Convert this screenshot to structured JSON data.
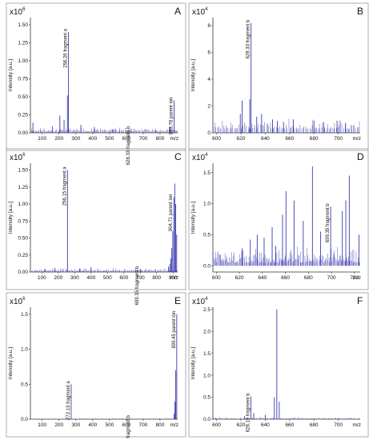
{
  "colors": {
    "spectrum": "#3a3ab0",
    "axis": "#333333",
    "frame": "#9a9a9a",
    "text": "#111111"
  },
  "chart_data": [
    {
      "type": "line",
      "letter": "A",
      "exponent_label": "x10",
      "exponent_power": "6",
      "ylabel": "Intensity [a.u.]",
      "xlabel": "m/z",
      "xlim": [
        30,
        905
      ],
      "ylim": [
        0,
        1.6
      ],
      "xticks": [
        100,
        200,
        300,
        400,
        500,
        600,
        700,
        800
      ],
      "yticks": [
        0.0,
        0.25,
        0.5,
        0.75,
        1.0,
        1.25,
        1.5
      ],
      "ytick_labels": [
        "0.00",
        "0.25",
        "0.50",
        "0.75",
        "1.00",
        "1.25",
        "1.50"
      ],
      "xtick_labels": [
        "100",
        "200",
        "300",
        "400",
        "500",
        "600",
        "700",
        "800"
      ],
      "peaks": [
        [
          256.26,
          1.4
        ],
        [
          628.33,
          0.05
        ],
        [
          883.78,
          0.45
        ],
        [
          250,
          0.52
        ],
        [
          205,
          0.24
        ],
        [
          230,
          0.18
        ],
        [
          160,
          0.09
        ],
        [
          330,
          0.11
        ],
        [
          410,
          0.08
        ],
        [
          520,
          0.05
        ],
        [
          860,
          0.08
        ],
        [
          45,
          0.14
        ]
      ],
      "noise": {
        "seed": 11,
        "count": 160,
        "max": 0.06,
        "base": 0.02
      },
      "annotations": [
        {
          "x": 256.26,
          "y": 1.4,
          "label": "256.26 fragment a"
        },
        {
          "x": 628.33,
          "y": 0.05,
          "label": "628.33 fragment b"
        },
        {
          "x": 883.78,
          "y": 0.45,
          "label": "883.78 parent ion"
        }
      ]
    },
    {
      "type": "line",
      "letter": "B",
      "exponent_label": "x10",
      "exponent_power": "4",
      "ylabel": "Intensity [a.u.]",
      "xlabel": "m/z",
      "xlim": [
        597,
        718
      ],
      "ylim": [
        0,
        8.6
      ],
      "xticks": [
        600,
        620,
        640,
        660,
        680,
        700
      ],
      "yticks": [
        0,
        2,
        4,
        6,
        8
      ],
      "ytick_labels": [
        "0",
        "2",
        "4",
        "6",
        "8"
      ],
      "xtick_labels": [
        "600",
        "620",
        "640",
        "660",
        "680",
        "700"
      ],
      "peaks": [
        [
          628.33,
          8.2
        ],
        [
          627.3,
          2.5
        ],
        [
          621.0,
          2.4
        ],
        [
          619.5,
          1.4
        ],
        [
          633,
          1.2
        ],
        [
          637,
          1.4
        ],
        [
          646,
          1.0
        ],
        [
          650,
          0.9
        ],
        [
          655,
          0.8
        ],
        [
          663,
          1.0
        ],
        [
          680,
          0.9
        ],
        [
          688,
          0.8
        ],
        [
          699,
          0.9
        ],
        [
          706,
          0.7
        ]
      ],
      "noise": {
        "seed": 23,
        "count": 120,
        "max": 0.8,
        "base": 0.3
      },
      "annotations": [
        {
          "x": 628.33,
          "y": 8.2,
          "label": "628.33 fragment b"
        }
      ]
    },
    {
      "type": "line",
      "letter": "C",
      "exponent_label": "x10",
      "exponent_power": "6",
      "ylabel": "Intensity [a.u.]",
      "xlabel": "m/z",
      "xlim": [
        30,
        928
      ],
      "ylim": [
        0,
        1.6
      ],
      "xticks": [
        100,
        200,
        300,
        400,
        500,
        600,
        700,
        800,
        900
      ],
      "yticks": [
        0.0,
        0.25,
        0.5,
        0.75,
        1.0,
        1.25,
        1.5
      ],
      "ytick_labels": [
        "0.00",
        "0.25",
        "0.50",
        "0.75",
        "1.00",
        "1.25",
        "1.50"
      ],
      "xtick_labels": [
        "100",
        "200",
        "300",
        "400",
        "500",
        "600",
        "700",
        "800",
        "900"
      ],
      "peaks": [
        [
          256.15,
          1.5
        ],
        [
          699.35,
          0.04
        ],
        [
          904.71,
          1.1
        ],
        [
          910,
          1.3
        ],
        [
          916,
          1.0
        ],
        [
          898,
          0.6
        ],
        [
          922,
          0.55
        ],
        [
          892,
          0.35
        ],
        [
          886,
          0.2
        ],
        [
          880,
          0.12
        ],
        [
          872,
          0.08
        ],
        [
          330,
          0.05
        ],
        [
          400,
          0.07
        ],
        [
          180,
          0.06
        ],
        [
          120,
          0.04
        ]
      ],
      "noise": {
        "seed": 37,
        "count": 160,
        "max": 0.05,
        "base": 0.015
      },
      "annotations": [
        {
          "x": 256.15,
          "y": 1.5,
          "label": "256.15 fragment a"
        },
        {
          "x": 699.35,
          "y": 0.04,
          "label": "699.35 fragment b"
        },
        {
          "x": 904.71,
          "y": 1.1,
          "label": "904.71 parent ion"
        }
      ]
    },
    {
      "type": "line",
      "letter": "D",
      "exponent_label": "x10",
      "exponent_power": "4",
      "ylabel": "Intensity [a.u.]",
      "xlabel": "m/z",
      "xlim": [
        597,
        725
      ],
      "ylim": [
        -0.1,
        1.65
      ],
      "xticks": [
        600,
        620,
        640,
        660,
        680,
        700,
        720
      ],
      "yticks": [
        0.0,
        0.5,
        1.0,
        1.5
      ],
      "ytick_labels": [
        "0.0",
        "0.5",
        "1.0",
        "1.5"
      ],
      "xtick_labels": [
        "600",
        "620",
        "640",
        "660",
        "680",
        "700",
        "720"
      ],
      "peaks": [
        [
          683.5,
          1.6
        ],
        [
          715.5,
          1.45
        ],
        [
          660.5,
          1.2
        ],
        [
          667.5,
          1.05
        ],
        [
          699.35,
          0.95
        ],
        [
          657.5,
          0.82
        ],
        [
          675.5,
          0.72
        ],
        [
          690.5,
          0.55
        ],
        [
          709.5,
          0.88
        ],
        [
          712.5,
          1.05
        ],
        [
          648.5,
          0.62
        ],
        [
          641.5,
          0.45
        ],
        [
          635.5,
          0.5
        ],
        [
          629.5,
          0.42
        ],
        [
          622.5,
          0.28
        ],
        [
          651.5,
          0.32
        ],
        [
          724,
          0.5
        ]
      ],
      "noise": {
        "seed": 51,
        "count": 200,
        "max": 0.28,
        "base": 0.05
      },
      "annotations": [
        {
          "x": 699.35,
          "y": 0.95,
          "label": "699.35 fragment b"
        }
      ]
    },
    {
      "type": "line",
      "letter": "E",
      "exponent_label": "x10",
      "exponent_power": "6",
      "ylabel": "Intensity [a.u.]",
      "xlabel": "m/z",
      "xlim": [
        30,
        905
      ],
      "ylim": [
        0,
        1.6
      ],
      "xticks": [
        100,
        200,
        300,
        400,
        500,
        600,
        700,
        800
      ],
      "yticks": [
        0.0,
        0.5,
        1.0,
        1.5
      ],
      "ytick_labels": [
        "0.0",
        "0.5",
        "1.0",
        "1.5"
      ],
      "xtick_labels": [
        "100",
        "200",
        "300",
        "400",
        "500",
        "600",
        "700",
        "800"
      ],
      "peaks": [
        [
          272.13,
          0.5
        ],
        [
          628.19,
          0.01
        ],
        [
          899.45,
          1.5
        ],
        [
          893,
          0.7
        ],
        [
          888,
          0.25
        ],
        [
          884,
          0.08
        ]
      ],
      "noise": {
        "seed": 67,
        "count": 90,
        "max": 0.012,
        "base": 0.004
      },
      "annotations": [
        {
          "x": 272.13,
          "y": 0.5,
          "label": "272.13 fragment a"
        },
        {
          "x": 628.19,
          "y": 0.01,
          "label": "628.19 fragment b"
        },
        {
          "x": 899.45,
          "y": 1.5,
          "label": "899.45 parent ion"
        }
      ]
    },
    {
      "type": "line",
      "letter": "F",
      "exponent_label": "x10",
      "exponent_power": "4",
      "ylabel": "Intensity [a.u.]",
      "xlabel": "m/z",
      "xlim": [
        597,
        718
      ],
      "ylim": [
        0,
        2.55
      ],
      "xticks": [
        600,
        620,
        640,
        660,
        680,
        700
      ],
      "yticks": [
        0.0,
        0.5,
        1.0,
        1.5,
        2.0,
        2.5
      ],
      "ytick_labels": [
        "0.0",
        "0.5",
        "1.0",
        "1.5",
        "2.0",
        "2.5"
      ],
      "xtick_labels": [
        "600",
        "620",
        "640",
        "660",
        "680",
        "700"
      ],
      "peaks": [
        [
          649.5,
          2.5
        ],
        [
          628.19,
          0.52
        ],
        [
          647.5,
          0.5
        ],
        [
          651.5,
          0.4
        ],
        [
          630.5,
          0.14
        ],
        [
          640,
          0.1
        ],
        [
          623,
          0.07
        ]
      ],
      "noise": {
        "seed": 83,
        "count": 100,
        "max": 0.04,
        "base": 0.015
      },
      "annotations": [
        {
          "x": 628.19,
          "y": 0.52,
          "label": "628.19 fragment b"
        }
      ]
    }
  ]
}
